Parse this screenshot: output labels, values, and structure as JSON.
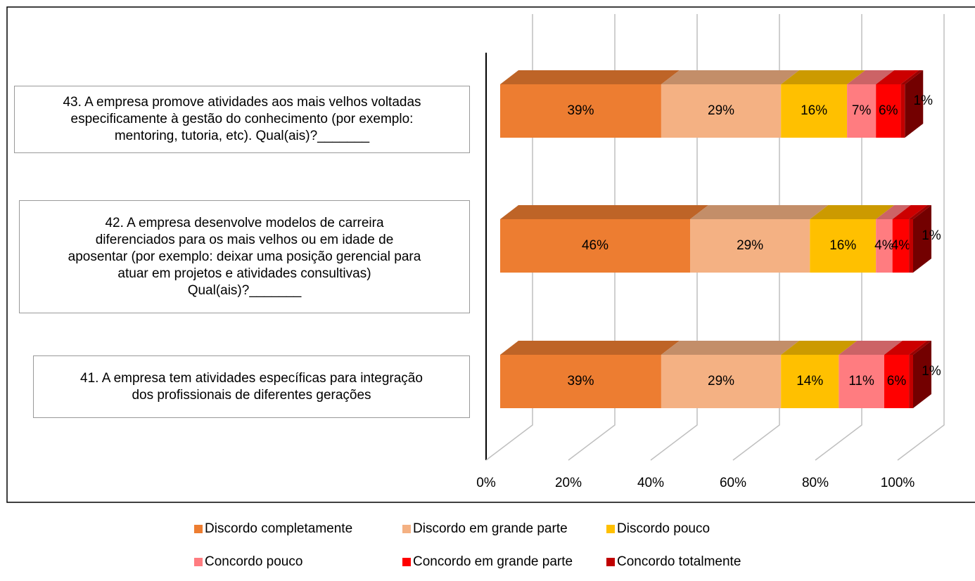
{
  "chart_data": {
    "type": "bar3d_stacked_horizontal",
    "categories": [
      "43. A empresa promove atividades aos mais velhos voltadas\nespecificamente à gestão do conhecimento (por exemplo:\nmentoring, tutoria, etc). Qual(ais)?_______",
      "42. A empresa desenvolve modelos de carreira\ndiferenciados para os mais velhos ou em idade de\naposentar (por exemplo: deixar uma posição gerencial para\natuar em projetos e atividades consultivas)\nQual(ais)?_______",
      "41. A empresa tem atividades específicas para integração\ndos profissionais de diferentes gerações"
    ],
    "series": [
      {
        "name": "Discordo completamente",
        "color": "#ed7d31",
        "values": [
          39,
          46,
          39
        ],
        "value_labels": [
          "39%",
          "46%",
          "39%"
        ]
      },
      {
        "name": "Discordo em grande parte",
        "color": "#f4b183",
        "values": [
          29,
          29,
          29
        ],
        "value_labels": [
          "29%",
          "29%",
          "29%"
        ]
      },
      {
        "name": "Discordo pouco",
        "color": "#ffc000",
        "values": [
          16,
          16,
          14
        ],
        "value_labels": [
          "16%",
          "16%",
          "14%"
        ]
      },
      {
        "name": "Concordo pouco",
        "color": "#ff7c80",
        "values": [
          7,
          4,
          11
        ],
        "value_labels": [
          "7%",
          "4%",
          "11%"
        ]
      },
      {
        "name": "Concordo em grande parte",
        "color": "#ff0000",
        "values": [
          6,
          4,
          6
        ],
        "value_labels": [
          "6%",
          "4%",
          "6%"
        ]
      },
      {
        "name": "Concordo totalmente",
        "color": "#c00000",
        "values": [
          1,
          1,
          1
        ],
        "value_labels": [
          "1%",
          "1%",
          "1%"
        ]
      }
    ],
    "xlim": [
      0,
      100
    ],
    "xticks": [
      {
        "value": 0,
        "label": "0%"
      },
      {
        "value": 20,
        "label": "20%"
      },
      {
        "value": 40,
        "label": "40%"
      },
      {
        "value": 60,
        "label": "60%"
      },
      {
        "value": 80,
        "label": "80%"
      },
      {
        "value": 100,
        "label": "100%"
      }
    ],
    "grid": true,
    "legend": "bottom"
  }
}
